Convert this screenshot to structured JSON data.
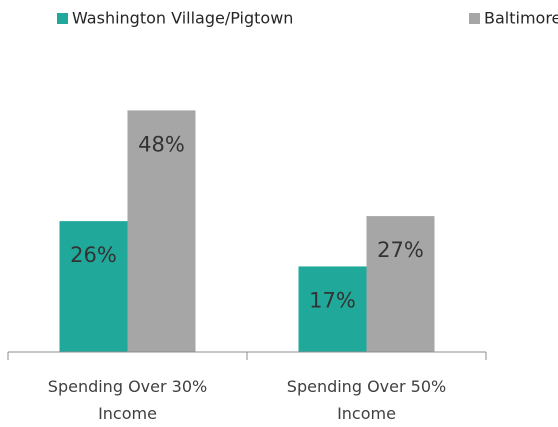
{
  "chart_data": {
    "type": "bar",
    "categories": [
      "Spending Over 30% Income",
      "Spending Over 50% Income"
    ],
    "series": [
      {
        "name": "Washington Village/Pigtown",
        "color": "#20a99a",
        "values": [
          26,
          17
        ],
        "value_labels": [
          "26%",
          "17%"
        ]
      },
      {
        "name": "Baltimore",
        "color": "#a6a6a6",
        "values": [
          48,
          27
        ],
        "value_labels": [
          "48%",
          "27%"
        ]
      }
    ],
    "ylim": [
      0,
      60
    ],
    "legend": "top"
  }
}
